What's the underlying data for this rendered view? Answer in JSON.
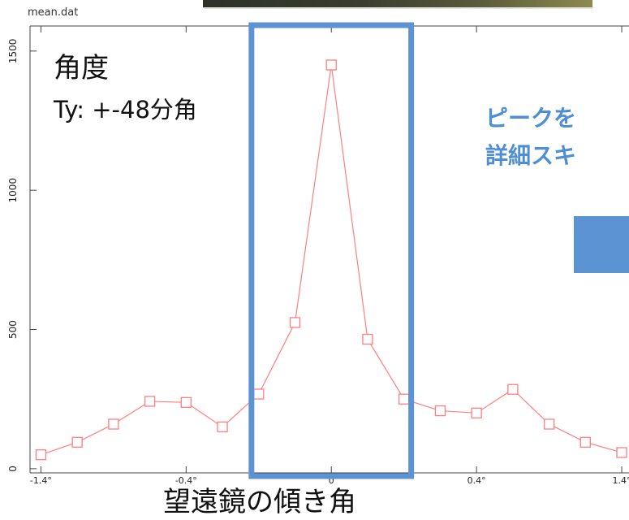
{
  "file_label": "mean.dat",
  "annotations": {
    "angle_title": "角度",
    "angle_range": "Ty: +-48分角",
    "peak_note_line1": "ピークを",
    "peak_note_line2": "詳細スキ"
  },
  "x_axis_caption": "望遠鏡の傾き角",
  "colors": {
    "series": "#ff7f7f",
    "highlight_box": "#5b93d3",
    "annotation_text": "#4f8fd1"
  },
  "chart_data": {
    "type": "line",
    "marker": "open-square",
    "x": [
      1,
      2,
      3,
      4,
      5,
      6,
      7,
      8,
      9,
      10,
      11,
      12,
      13,
      14,
      15,
      16,
      17
    ],
    "y": [
      50,
      95,
      160,
      242,
      238,
      150,
      268,
      525,
      1450,
      465,
      250,
      208,
      200,
      285,
      160,
      95,
      58
    ],
    "yticks": [
      "0",
      "500",
      "1000",
      "1500"
    ],
    "ytick_values": [
      0,
      500,
      1000,
      1500
    ],
    "ylim": [
      -15,
      1590
    ],
    "xlim": [
      0.7,
      17.2
    ],
    "xtick_positions": [
      1,
      5,
      9,
      13,
      17
    ],
    "xtick_labels": [
      "-1.4°",
      "-0.4°",
      "0",
      "0.4°",
      "1.4°"
    ],
    "grid": false,
    "highlight": {
      "from": 6.8,
      "to": 11.2
    }
  }
}
